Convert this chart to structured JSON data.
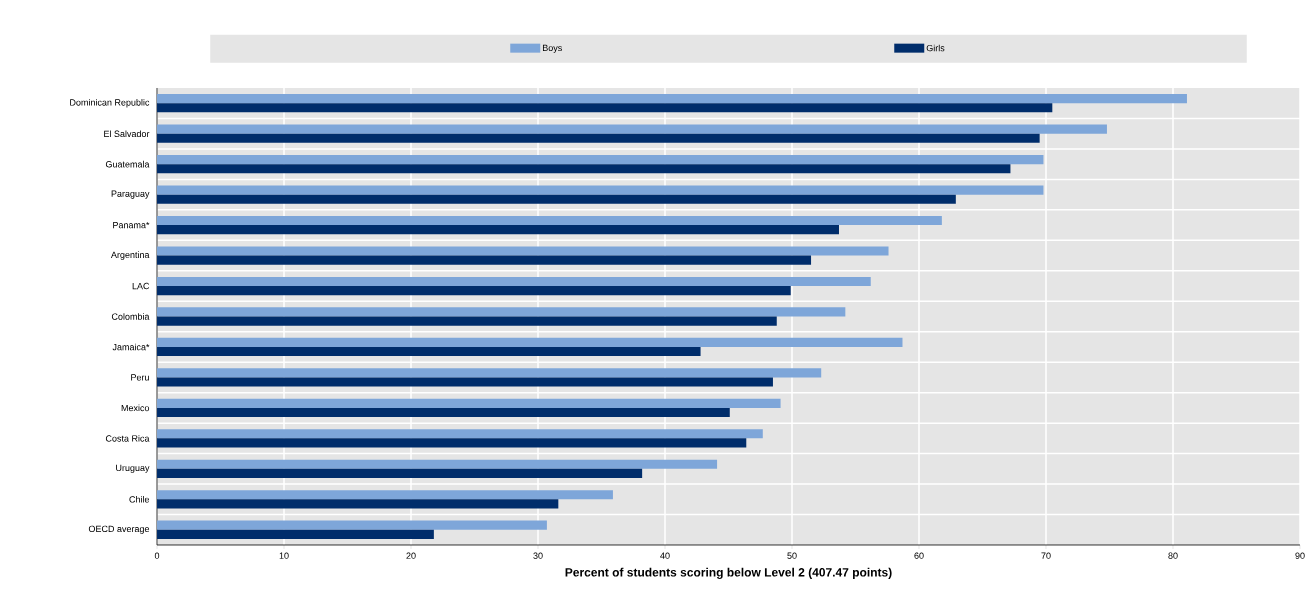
{
  "chart_data": {
    "type": "bar",
    "orientation": "horizontal",
    "xlabel": "Percent of students scoring below Level 2 (407.47 points)",
    "categories": [
      "Dominican Republic",
      "El Salvador",
      "Guatemala",
      "Paraguay",
      "Panama*",
      "Argentina",
      "LAC",
      "Colombia",
      "Jamaica*",
      "Peru",
      "Mexico",
      "Costa Rica",
      "Uruguay",
      "Chile",
      "OECD average"
    ],
    "series": [
      {
        "name": "Boys",
        "color": "#7ea6d9",
        "values": [
          81.1,
          74.8,
          69.8,
          69.8,
          61.8,
          57.6,
          56.2,
          54.2,
          58.7,
          52.3,
          49.1,
          47.7,
          44.1,
          35.9,
          30.7
        ]
      },
      {
        "name": "Girls",
        "color": "#002d6b",
        "values": [
          70.5,
          69.5,
          67.2,
          62.9,
          53.7,
          51.5,
          49.9,
          48.8,
          42.8,
          48.5,
          45.1,
          46.4,
          38.2,
          31.6,
          21.8
        ]
      }
    ],
    "xlim": [
      0,
      90
    ],
    "xticks": [
      0,
      10,
      20,
      30,
      40,
      50,
      60,
      70,
      80,
      90
    ],
    "grid": true,
    "legend": "top"
  }
}
